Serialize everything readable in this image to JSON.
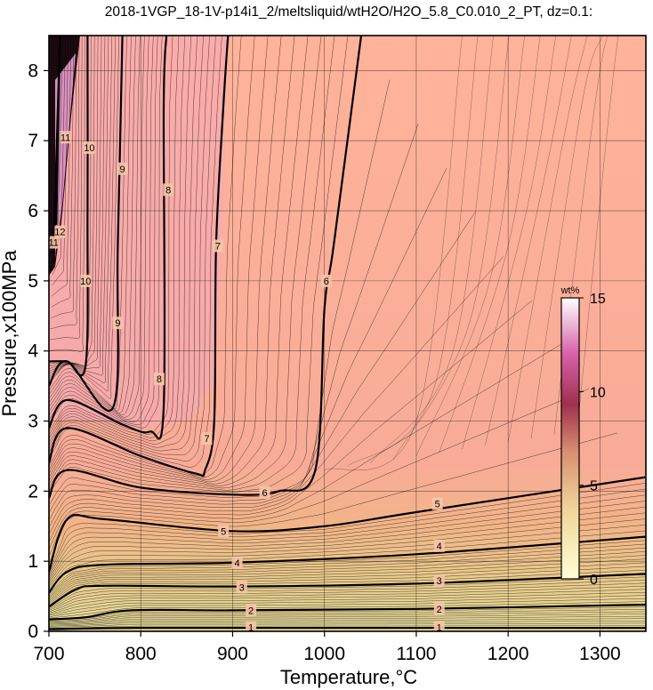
{
  "title": "2018-1VGP_18-1V-p14i1_2/meltsliquid/wtH2O/H2O_5.8_C0.010_2_PT, dz=0.1:",
  "chart_data": {
    "type": "heatmap",
    "xlabel": "Temperature,°C",
    "ylabel": "Pressure,x100MPa",
    "xlim": [
      700,
      1350
    ],
    "ylim": [
      0,
      8.5
    ],
    "xticks": [
      700,
      800,
      900,
      1000,
      1100,
      1200,
      1300
    ],
    "yticks": [
      0,
      1,
      2,
      3,
      4,
      5,
      6,
      7,
      8
    ],
    "grid": true,
    "colorbar": {
      "title": "wt%",
      "range": [
        0,
        15
      ],
      "ticks": [
        0,
        5,
        10,
        15
      ],
      "colors": [
        "#ffffd4",
        "#e8c88c",
        "#c46a57",
        "#9a2045",
        "#e895c8",
        "#ffffff"
      ]
    },
    "contours": [
      {
        "level": 1,
        "points": [
          [
            700,
            0.03
          ],
          [
            800,
            0.05
          ],
          [
            1000,
            0.05
          ],
          [
            1350,
            0.05
          ]
        ],
        "labels": [
          [
            920,
            0.06
          ],
          [
            1125,
            0.06
          ]
        ]
      },
      {
        "level": 2,
        "points": [
          [
            700,
            0.17
          ],
          [
            740,
            0.2
          ],
          [
            790,
            0.3
          ],
          [
            900,
            0.3
          ],
          [
            1100,
            0.32
          ],
          [
            1350,
            0.38
          ]
        ],
        "labels": [
          [
            920,
            0.3
          ],
          [
            1125,
            0.32
          ]
        ]
      },
      {
        "level": 3,
        "points": [
          [
            700,
            0.35
          ],
          [
            730,
            0.6
          ],
          [
            760,
            0.65
          ],
          [
            900,
            0.64
          ],
          [
            1100,
            0.68
          ],
          [
            1350,
            0.82
          ]
        ],
        "labels": [
          [
            910,
            0.63
          ],
          [
            1125,
            0.72
          ]
        ]
      },
      {
        "level": 4,
        "points": [
          [
            700,
            0.55
          ],
          [
            720,
            0.85
          ],
          [
            760,
            0.95
          ],
          [
            900,
            0.98
          ],
          [
            1100,
            1.1
          ],
          [
            1350,
            1.35
          ]
        ],
        "labels": [
          [
            905,
            0.98
          ],
          [
            1125,
            1.22
          ]
        ]
      },
      {
        "level": 5,
        "points": [
          [
            700,
            0.85
          ],
          [
            720,
            1.6
          ],
          [
            760,
            1.6
          ],
          [
            900,
            1.43
          ],
          [
            1000,
            1.5
          ],
          [
            1100,
            1.7
          ],
          [
            1350,
            2.2
          ]
        ],
        "labels": [
          [
            890,
            1.43
          ],
          [
            1123,
            1.82
          ]
        ]
      },
      {
        "level": 6,
        "points": [
          [
            700,
            1.9
          ],
          [
            720,
            2.3
          ],
          [
            800,
            2.05
          ],
          [
            900,
            1.95
          ],
          [
            950,
            2.0
          ],
          [
            990,
            2.3
          ],
          [
            1000,
            4.6
          ],
          [
            1010,
            5.5
          ],
          [
            1040,
            8.5
          ]
        ],
        "labels": [
          [
            935,
            1.98
          ],
          [
            1002,
            5.0
          ]
        ]
      },
      {
        "level": 7,
        "points": [
          [
            700,
            2.4
          ],
          [
            720,
            2.9
          ],
          [
            800,
            2.5
          ],
          [
            860,
            2.25
          ],
          [
            870,
            2.3
          ],
          [
            880,
            3.0
          ],
          [
            882,
            5.5
          ],
          [
            890,
            7.5
          ],
          [
            895,
            8.5
          ]
        ],
        "labels": [
          [
            872,
            2.75
          ],
          [
            884,
            5.5
          ]
        ]
      },
      {
        "level": 8,
        "points": [
          [
            700,
            2.9
          ],
          [
            720,
            3.3
          ],
          [
            780,
            2.95
          ],
          [
            810,
            2.85
          ],
          [
            825,
            3.2
          ],
          [
            825,
            7.5
          ],
          [
            828,
            8.5
          ]
        ],
        "labels": [
          [
            820,
            3.6
          ],
          [
            830,
            6.3
          ]
        ]
      },
      {
        "level": 9,
        "points": [
          [
            700,
            3.5
          ],
          [
            720,
            3.85
          ],
          [
            770,
            3.2
          ],
          [
            775,
            5.5
          ],
          [
            780,
            8.5
          ]
        ],
        "labels": [
          [
            775,
            4.4
          ],
          [
            780,
            6.6
          ]
        ]
      },
      {
        "level": 10,
        "points": [
          [
            700,
            3.85
          ],
          [
            720,
            3.85
          ],
          [
            740,
            3.8
          ],
          [
            742,
            6.0
          ],
          [
            742,
            8.5
          ]
        ],
        "labels": [
          [
            740,
            5.0
          ],
          [
            744,
            6.9
          ]
        ]
      },
      {
        "level": 11,
        "points": [
          [
            705,
            5.4
          ],
          [
            712,
            8.5
          ]
        ],
        "labels": [
          [
            705,
            5.55
          ],
          [
            718,
            7.05
          ]
        ]
      },
      {
        "level": 12,
        "points": [
          [
            708,
            5.8
          ],
          [
            712,
            8.5
          ]
        ],
        "labels": [
          [
            712,
            5.7
          ]
        ]
      }
    ]
  }
}
